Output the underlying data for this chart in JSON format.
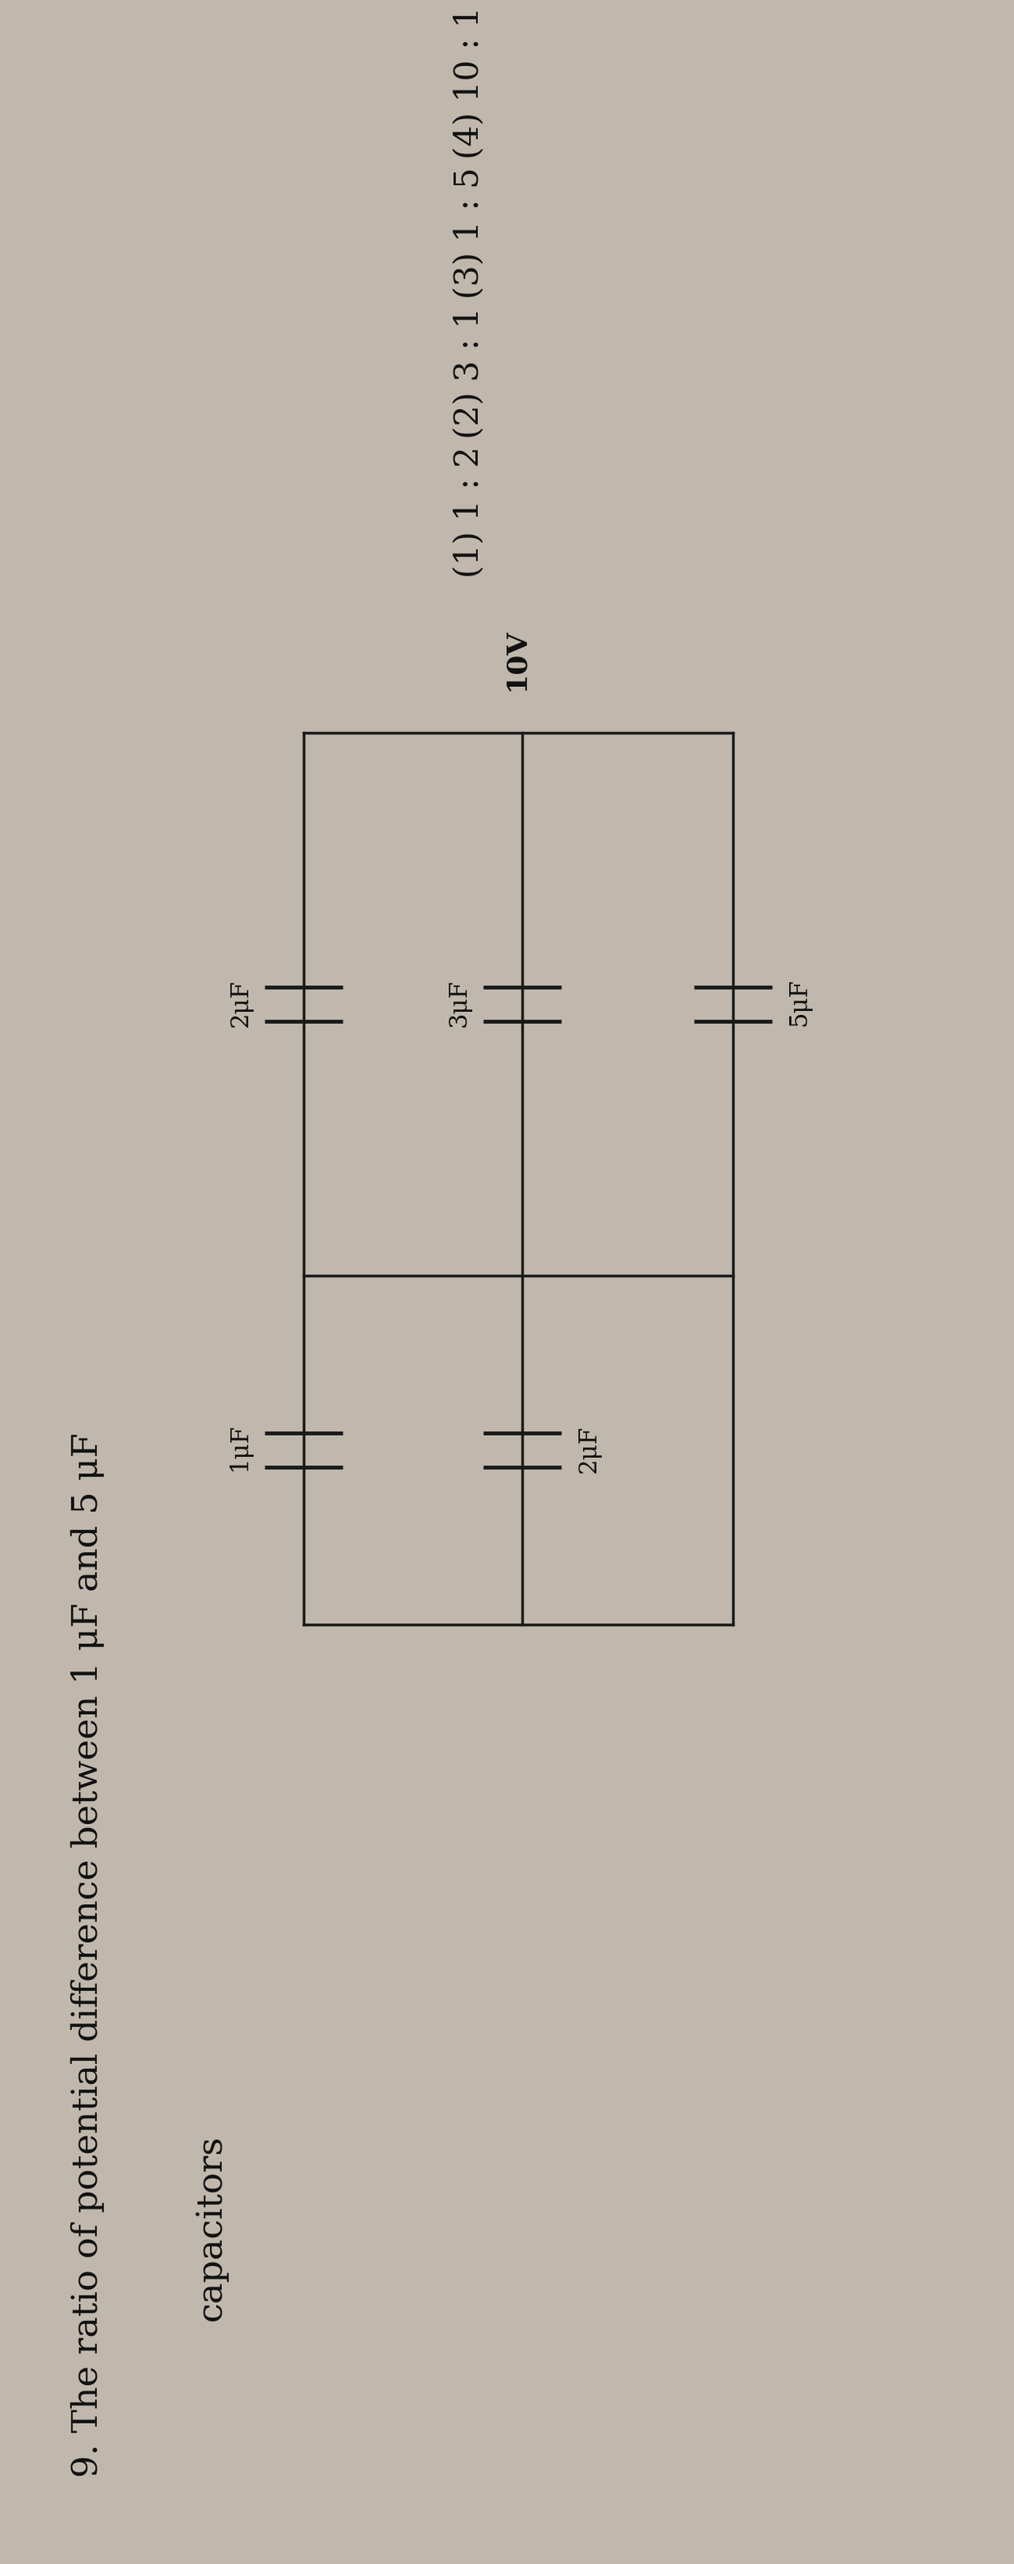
{
  "bg_color": "#c0b8ac",
  "title_num": "9.",
  "title_text": "The ratio of potential difference between 1 μF and 5 μF",
  "title_text2": "capacitors",
  "options": [
    "(1) 1 : 2",
    "(2) 3 : 1",
    "(3) 1 : 5",
    "(4) 10 : 1"
  ],
  "voltage": "10V",
  "cap_labels": [
    "1μF",
    "2μF",
    "2μF",
    "3μF",
    "5μF"
  ],
  "line_color": "#1a1a1a",
  "text_color": "#111111",
  "font_size_title": 32,
  "font_size_options": 30,
  "font_size_circuit": 22,
  "rotation": -90
}
